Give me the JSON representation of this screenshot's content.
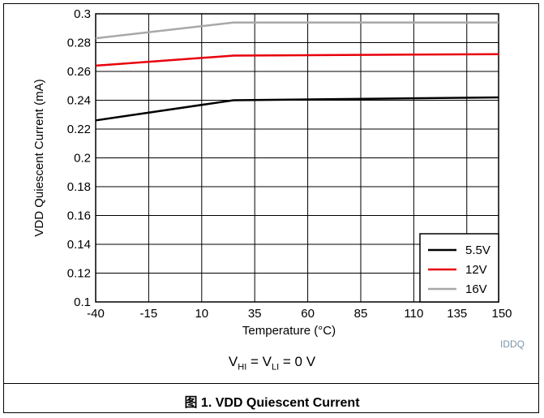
{
  "chart_data": {
    "type": "line",
    "xlabel": "Temperature (°C)",
    "ylabel": "VDD Quiescent Current (mA)",
    "xlim": [
      -40,
      150
    ],
    "ylim": [
      0.1,
      0.3
    ],
    "x_ticks": [
      "-40",
      "-15",
      "10",
      "35",
      "60",
      "85",
      "110",
      "135",
      "150"
    ],
    "y_ticks": [
      "0.1",
      "0.12",
      "0.14",
      "0.16",
      "0.18",
      "0.2",
      "0.22",
      "0.24",
      "0.26",
      "0.28",
      "0.3"
    ],
    "grid": true,
    "legend_position": "bottom-right",
    "series": [
      {
        "name": "5.5V",
        "color": "#000000",
        "x": [
          -40,
          25,
          150
        ],
        "y": [
          0.226,
          0.24,
          0.242
        ]
      },
      {
        "name": "12V",
        "color": "#e8000b",
        "x": [
          -40,
          25,
          150
        ],
        "y": [
          0.264,
          0.271,
          0.272
        ]
      },
      {
        "name": "16V",
        "color": "#a8a8a8",
        "x": [
          -40,
          25,
          150
        ],
        "y": [
          0.283,
          0.294,
          0.294
        ]
      }
    ]
  },
  "figure": {
    "tag": "IDDQ",
    "condition": {
      "v1": "V",
      "v1_sub": "HI",
      "eq1": " = ",
      "v2": "V",
      "v2_sub": "LI",
      "eq2": " = 0 V"
    },
    "caption": "图 1. VDD Quiescent Current"
  }
}
